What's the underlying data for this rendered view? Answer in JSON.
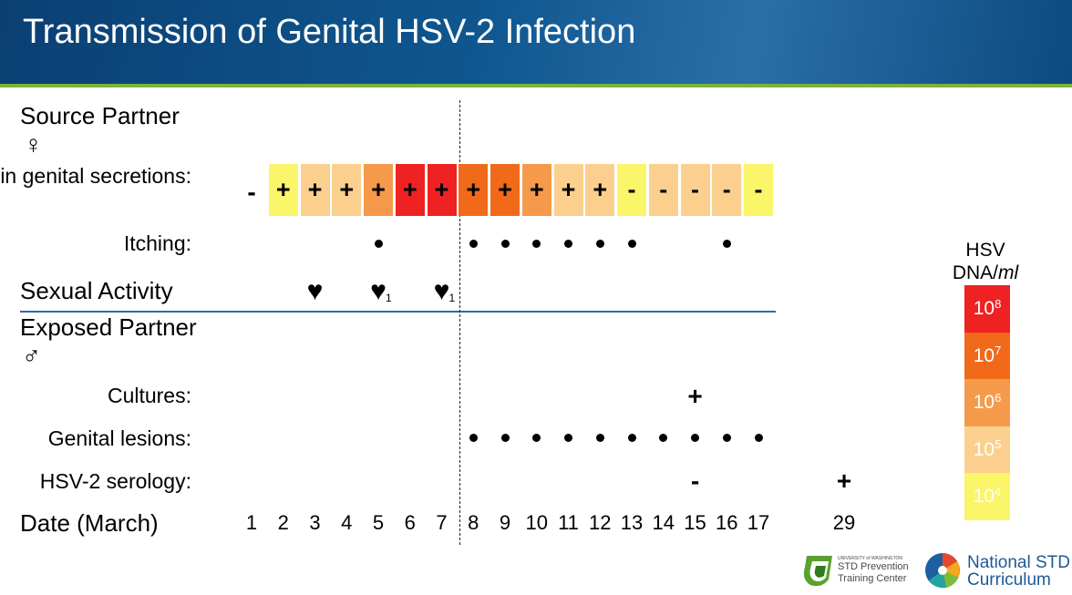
{
  "title": "Transmission of Genital HSV-2 Infection",
  "source_partner": {
    "label": "Source Partner",
    "symbol": "♀"
  },
  "exposed_partner": {
    "label": "Exposed Partner",
    "symbol": "♂"
  },
  "rows": {
    "virus": "Virus in genital secretions:",
    "itching": "Itching:",
    "sexual": "Sexual Activity",
    "cultures": "Cultures:",
    "lesions": "Genital lesions:",
    "serology": "HSV-2 serology:",
    "date": "Date (March)"
  },
  "chart_data": {
    "type": "table",
    "days": [
      "1",
      "2",
      "3",
      "4",
      "5",
      "6",
      "7",
      "8",
      "9",
      "10",
      "11",
      "12",
      "13",
      "14",
      "15",
      "16",
      "17"
    ],
    "extra_day": "29",
    "virus_day1": "-",
    "virus_results": [
      {
        "day": "2",
        "result": "+",
        "level": "10^4"
      },
      {
        "day": "3",
        "result": "+",
        "level": "10^5"
      },
      {
        "day": "4",
        "result": "+",
        "level": "10^5"
      },
      {
        "day": "5",
        "result": "+",
        "level": "10^6"
      },
      {
        "day": "6",
        "result": "+",
        "level": "10^8"
      },
      {
        "day": "7",
        "result": "+",
        "level": "10^8"
      },
      {
        "day": "8",
        "result": "+",
        "level": "10^7"
      },
      {
        "day": "9",
        "result": "+",
        "level": "10^7"
      },
      {
        "day": "10",
        "result": "+",
        "level": "10^6"
      },
      {
        "day": "11",
        "result": "+",
        "level": "10^5"
      },
      {
        "day": "12",
        "result": "+",
        "level": "10^5"
      },
      {
        "day": "13",
        "result": "-",
        "level": "10^4"
      },
      {
        "day": "14",
        "result": "-",
        "level": "10^5"
      },
      {
        "day": "15",
        "result": "-",
        "level": "10^5"
      },
      {
        "day": "16",
        "result": "-",
        "level": "10^5"
      },
      {
        "day": "17",
        "result": "-",
        "level": "10^4"
      }
    ],
    "itching_days": [
      "5",
      "8",
      "9",
      "10",
      "11",
      "12",
      "13",
      "16"
    ],
    "sexual_activity": [
      {
        "day": "3",
        "subscript": ""
      },
      {
        "day": "5",
        "subscript": "1"
      },
      {
        "day": "7",
        "subscript": "1"
      }
    ],
    "cultures": [
      {
        "day": "15",
        "result": "+"
      }
    ],
    "lesion_days": [
      "8",
      "9",
      "10",
      "11",
      "12",
      "13",
      "14",
      "15",
      "16",
      "17"
    ],
    "serology": [
      {
        "day": "15",
        "result": "-"
      },
      {
        "day": "29",
        "result": "+"
      }
    ],
    "legend": {
      "title_line1": "HSV",
      "title_line2": "DNA/ml",
      "levels": [
        {
          "base": "10",
          "exp": "8",
          "color": "#ee2222"
        },
        {
          "base": "10",
          "exp": "7",
          "color": "#f06a1a"
        },
        {
          "base": "10",
          "exp": "6",
          "color": "#f59a4a"
        },
        {
          "base": "10",
          "exp": "5",
          "color": "#fbd08e"
        },
        {
          "base": "10",
          "exp": "4",
          "color": "#fbf56a"
        }
      ]
    },
    "heart_symbol": "♥",
    "dot_symbol": "•"
  },
  "logos": {
    "prevention_small": "UNIVERSITY of WASHINGTON",
    "prevention_line1": "STD Prevention",
    "prevention_line2": "Training Center",
    "curriculum_line1": "National STD",
    "curriculum_line2": "Curriculum"
  }
}
